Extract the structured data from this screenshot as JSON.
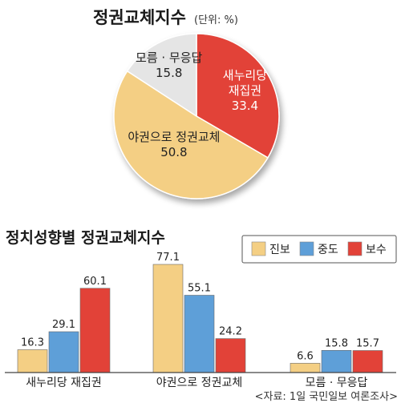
{
  "chart_data": [
    {
      "type": "pie",
      "title": "정권교체지수",
      "unit_note": "(단위: %)",
      "slices": [
        {
          "label_lines": [
            "새누리당",
            "재집권"
          ],
          "value": 33.4,
          "value_text": "33.4",
          "color": "#e24238",
          "text_color": "#ffffff"
        },
        {
          "label_lines": [
            "야권으로 정권교체"
          ],
          "value": 50.8,
          "value_text": "50.8",
          "color": "#f4cf84",
          "text_color": "#222222"
        },
        {
          "label_lines": [
            "모름 · 무응답"
          ],
          "value": 15.8,
          "value_text": "15.8",
          "color": "#e5e5e5",
          "text_color": "#222222"
        }
      ]
    },
    {
      "type": "bar",
      "title": "정치성향별 정권교체지수",
      "categories": [
        "새누리당 재집권",
        "야권으로 정권교체",
        "모름 · 무응답"
      ],
      "series": [
        {
          "name": "진보",
          "color": "#f4cf84",
          "values": [
            16.3,
            77.1,
            6.6
          ],
          "value_texts": [
            "16.3",
            "77.1",
            "6.6"
          ]
        },
        {
          "name": "중도",
          "color": "#5e9fd8",
          "values": [
            29.1,
            55.1,
            15.8
          ],
          "value_texts": [
            "29.1",
            "55.1",
            "15.8"
          ]
        },
        {
          "name": "보수",
          "color": "#e24238",
          "values": [
            60.1,
            24.2,
            15.7
          ],
          "value_texts": [
            "60.1",
            "24.2",
            "15.7"
          ]
        }
      ],
      "legend_position": "top-right"
    }
  ],
  "source": "<자료: 1일 국민일보 여론조사>"
}
